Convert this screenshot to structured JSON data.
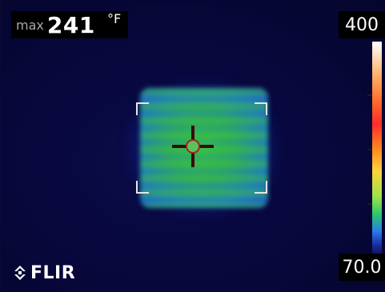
{
  "readout": {
    "max_label": "max",
    "max_value": "241",
    "unit": "°F"
  },
  "scale": {
    "top_value": "400",
    "bottom_value": "70.0"
  },
  "brand": {
    "logo_text": "FLIR"
  },
  "icons": {
    "crosshair": "crosshair-icon",
    "logo_mark": "flir-mark-icon",
    "corners": "measurement-box-corners"
  },
  "colors": {
    "background": "#07073a",
    "hotspot": "#36c34a",
    "crosshair": "#3a0a0a",
    "colorbar_top": "#ffffff",
    "colorbar_bottom": "#0a0a3a"
  }
}
